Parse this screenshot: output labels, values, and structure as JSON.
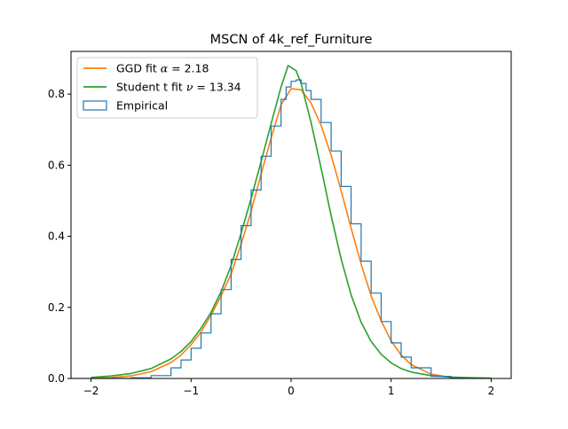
{
  "chart_data": {
    "type": "line",
    "title": "MSCN of 4k_ref_Furniture",
    "xlabel": "",
    "ylabel": "",
    "xlim": [
      -2.2,
      2.2
    ],
    "ylim": [
      0,
      0.92
    ],
    "x_ticks": [
      -2,
      -1,
      0,
      1,
      2
    ],
    "x_tick_labels": [
      "−2",
      "−1",
      "0",
      "1",
      "2"
    ],
    "y_ticks": [
      0.0,
      0.2,
      0.4,
      0.6,
      0.8
    ],
    "y_tick_labels": [
      "0.0",
      "0.2",
      "0.4",
      "0.6",
      "0.8"
    ],
    "grid": false,
    "legend_position": "top-left",
    "series": [
      {
        "name_prefix": "GGD fit ",
        "name_symbol": "α",
        "name_suffix": " = 2.18",
        "kind": "line",
        "color": "#ff7f0e",
        "x": [
          -2.0,
          -1.8,
          -1.6,
          -1.4,
          -1.2,
          -1.1,
          -1.0,
          -0.9,
          -0.8,
          -0.7,
          -0.6,
          -0.5,
          -0.4,
          -0.3,
          -0.2,
          -0.1,
          0.0,
          0.1,
          0.2,
          0.3,
          0.4,
          0.5,
          0.6,
          0.7,
          0.8,
          0.9,
          1.0,
          1.1,
          1.2,
          1.4,
          1.6,
          1.8,
          2.0
        ],
        "y": [
          0.0007,
          0.0025,
          0.0072,
          0.019,
          0.045,
          0.066,
          0.095,
          0.131,
          0.178,
          0.232,
          0.294,
          0.377,
          0.47,
          0.575,
          0.676,
          0.77,
          0.815,
          0.812,
          0.775,
          0.712,
          0.628,
          0.528,
          0.423,
          0.322,
          0.232,
          0.162,
          0.106,
          0.066,
          0.039,
          0.012,
          0.003,
          0.0008,
          0.0002
        ]
      },
      {
        "name_prefix": "Student t fit ",
        "name_symbol": "ν",
        "name_suffix": " = 13.34",
        "kind": "line",
        "color": "#2ca02c",
        "x": [
          -2.0,
          -1.8,
          -1.6,
          -1.4,
          -1.2,
          -1.1,
          -1.0,
          -0.9,
          -0.8,
          -0.7,
          -0.6,
          -0.5,
          -0.4,
          -0.3,
          -0.2,
          -0.1,
          -0.03,
          0.05,
          0.1,
          0.2,
          0.3,
          0.4,
          0.5,
          0.6,
          0.7,
          0.8,
          0.9,
          1.0,
          1.1,
          1.2,
          1.4,
          1.6,
          1.8,
          2.0
        ],
        "y": [
          0.003,
          0.007,
          0.014,
          0.028,
          0.055,
          0.076,
          0.104,
          0.141,
          0.186,
          0.244,
          0.318,
          0.408,
          0.506,
          0.61,
          0.717,
          0.82,
          0.88,
          0.866,
          0.83,
          0.72,
          0.592,
          0.458,
          0.336,
          0.235,
          0.158,
          0.104,
          0.068,
          0.044,
          0.028,
          0.018,
          0.008,
          0.004,
          0.002,
          0.001
        ]
      },
      {
        "name": "Empirical",
        "kind": "step",
        "color": "#1f77b4",
        "x": [
          -2.27,
          -1.8,
          -1.6,
          -1.4,
          -1.2,
          -1.1,
          -1.0,
          -0.9,
          -0.8,
          -0.7,
          -0.6,
          -0.5,
          -0.4,
          -0.3,
          -0.2,
          -0.1,
          -0.05,
          0.0,
          0.05,
          0.1,
          0.15,
          0.2,
          0.3,
          0.4,
          0.5,
          0.6,
          0.7,
          0.8,
          0.9,
          1.0,
          1.1,
          1.2,
          1.4,
          1.6,
          1.75
        ],
        "y": [
          0.0,
          0.0005,
          0.002,
          0.008,
          0.03,
          0.052,
          0.085,
          0.128,
          0.182,
          0.25,
          0.335,
          0.43,
          0.53,
          0.625,
          0.71,
          0.785,
          0.82,
          0.836,
          0.84,
          0.83,
          0.81,
          0.785,
          0.72,
          0.64,
          0.54,
          0.435,
          0.33,
          0.24,
          0.16,
          0.1,
          0.06,
          0.03,
          0.006,
          0.001,
          0.0
        ]
      }
    ]
  }
}
